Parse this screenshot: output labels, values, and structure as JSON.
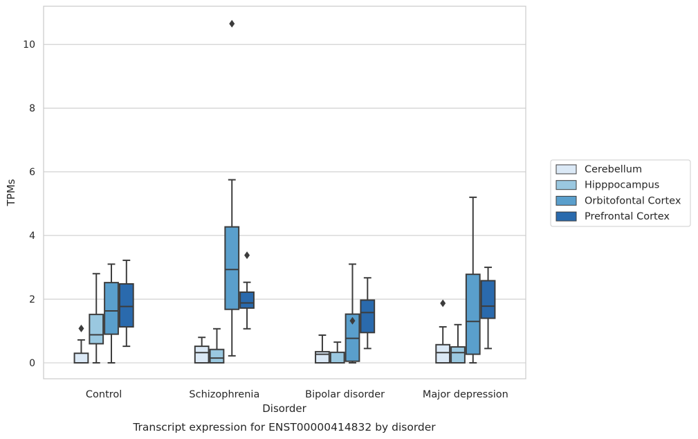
{
  "chart_data": {
    "type": "box",
    "title": "Transcript expression for ENST00000414832 by disorder",
    "xlabel": "Disorder",
    "ylabel": "TPMs",
    "categories": [
      "Control",
      "Schizophrenia",
      "Bipolar disorder",
      "Major depression"
    ],
    "yticks": [
      "0",
      "2",
      "4",
      "6",
      "8",
      "10"
    ],
    "ylim": [
      -0.5,
      11.2
    ],
    "grid": true,
    "legend_position": "right",
    "series": [
      {
        "name": "Cerebellum",
        "color": "#dbe9f6",
        "boxes": [
          {
            "whislo": 0.0,
            "q1": 0.0,
            "med": 0.0,
            "q3": 0.3,
            "whishi": 0.72,
            "fliers": [
              1.08
            ]
          },
          {
            "whislo": 0.0,
            "q1": 0.0,
            "med": 0.32,
            "q3": 0.52,
            "whishi": 0.8,
            "fliers": []
          },
          {
            "whislo": 0.0,
            "q1": 0.0,
            "med": 0.27,
            "q3": 0.35,
            "whishi": 0.87,
            "fliers": []
          },
          {
            "whislo": 0.0,
            "q1": 0.0,
            "med": 0.32,
            "q3": 0.57,
            "whishi": 1.13,
            "fliers": [
              1.87
            ]
          }
        ]
      },
      {
        "name": "Hipppocampus",
        "color": "#9ac8e0",
        "boxes": [
          {
            "whislo": 0.0,
            "q1": 0.6,
            "med": 0.88,
            "q3": 1.52,
            "whishi": 2.8,
            "fliers": []
          },
          {
            "whislo": 0.0,
            "q1": 0.0,
            "med": 0.15,
            "q3": 0.42,
            "whishi": 1.07,
            "fliers": []
          },
          {
            "whislo": 0.0,
            "q1": 0.0,
            "med": 0.0,
            "q3": 0.33,
            "whishi": 0.65,
            "fliers": []
          },
          {
            "whislo": 0.0,
            "q1": 0.0,
            "med": 0.32,
            "q3": 0.5,
            "whishi": 1.2,
            "fliers": []
          }
        ]
      },
      {
        "name": "Orbitofontal Cortex",
        "color": "#5a9fcc",
        "boxes": [
          {
            "whislo": 0.0,
            "q1": 0.9,
            "med": 1.63,
            "q3": 2.52,
            "whishi": 3.1,
            "fliers": []
          },
          {
            "whislo": 0.22,
            "q1": 1.68,
            "med": 2.93,
            "q3": 4.27,
            "whishi": 5.75,
            "fliers": [
              10.65
            ]
          },
          {
            "whislo": 0.0,
            "q1": 0.05,
            "med": 0.77,
            "q3": 1.53,
            "whishi": 3.1,
            "fliers": [
              1.32
            ]
          },
          {
            "whislo": 0.0,
            "q1": 0.27,
            "med": 1.3,
            "q3": 2.78,
            "whishi": 5.2,
            "fliers": []
          }
        ]
      },
      {
        "name": "Prefrontal Cortex",
        "color": "#2a6aad",
        "boxes": [
          {
            "whislo": 0.52,
            "q1": 1.13,
            "med": 1.77,
            "q3": 2.48,
            "whishi": 3.22,
            "fliers": []
          },
          {
            "whislo": 1.07,
            "q1": 1.72,
            "med": 1.88,
            "q3": 2.22,
            "whishi": 2.53,
            "fliers": [
              3.38
            ]
          },
          {
            "whislo": 0.45,
            "q1": 0.95,
            "med": 1.58,
            "q3": 1.97,
            "whishi": 2.67,
            "fliers": []
          },
          {
            "whislo": 0.45,
            "q1": 1.4,
            "med": 1.78,
            "q3": 2.58,
            "whishi": 3.0,
            "fliers": []
          }
        ]
      }
    ]
  }
}
